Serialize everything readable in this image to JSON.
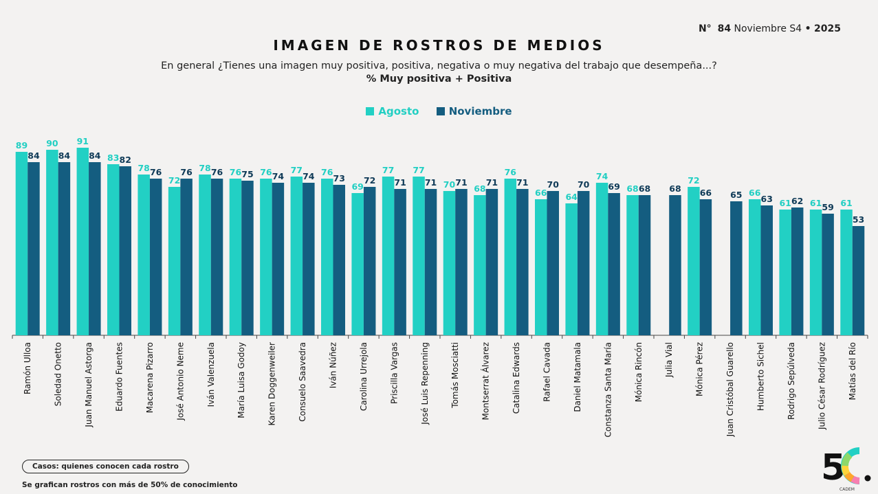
{
  "header": {
    "issue_prefix": "N°",
    "issue_number": "84",
    "issue_period": "Noviembre S4",
    "issue_separator": "•",
    "issue_year": "2025"
  },
  "footer": {
    "casos": "Casos: quienes conocen cada rostro",
    "note": "Se grafican rostros con más de 50% de conocimiento",
    "logo_text": "CADEM"
  },
  "colors": {
    "agosto": "#22d0c4",
    "noviembre": "#145d80",
    "agosto_label": "#22cfc3",
    "noviembre_label": "#0f3a57"
  },
  "chart_data": {
    "type": "bar",
    "title": "IMAGEN DE ROSTROS DE MEDIOS",
    "subtitle": "En general ¿Tienes una imagen muy positiva, positiva, negativa o muy negativa del trabajo que desempeña...?",
    "subtitle2": "% Muy positiva + Positiva",
    "xlabel": "",
    "ylabel": "",
    "ylim": [
      0,
      100
    ],
    "grid": false,
    "legend_position": "top-center",
    "categories": [
      "Ramón Ulloa",
      "Soledad Onetto",
      "Juan Manuel Astorga",
      "Eduardo Fuentes",
      "Macarena Pizarro",
      "José Antonio Neme",
      "Iván Valenzuela",
      "María Luisa Godoy",
      "Karen Doggenweiler",
      "Consuelo Saavedra",
      "Iván Núñez",
      "Carolina Urrejola",
      "Priscilla  Vargas",
      "José Luis Repenning",
      "Tomás Mosciatti",
      "Montserrat Álvarez",
      "Catalina Edwards",
      "Rafael Cavada",
      "Daniel Matamala",
      "Constanza Santa María",
      "Mónica Rincón",
      "Julia Vial",
      "Mónica Pérez",
      "Juan Cristóbal Guarello",
      "Humberto Sichel",
      "Rodrigo Sepúlveda",
      "Julio César Rodríguez",
      "Matías del Río"
    ],
    "series": [
      {
        "name": "Agosto",
        "values": [
          89,
          90,
          91,
          83,
          78,
          72,
          78,
          76,
          76,
          77,
          76,
          69,
          77,
          77,
          70,
          68,
          76,
          66,
          64,
          74,
          68,
          null,
          72,
          null,
          66,
          61,
          61,
          61
        ]
      },
      {
        "name": "Noviembre",
        "values": [
          84,
          84,
          84,
          82,
          76,
          76,
          76,
          75,
          74,
          74,
          73,
          72,
          71,
          71,
          71,
          71,
          71,
          70,
          70,
          69,
          68,
          68,
          66,
          65,
          63,
          62,
          59,
          53
        ]
      }
    ]
  }
}
